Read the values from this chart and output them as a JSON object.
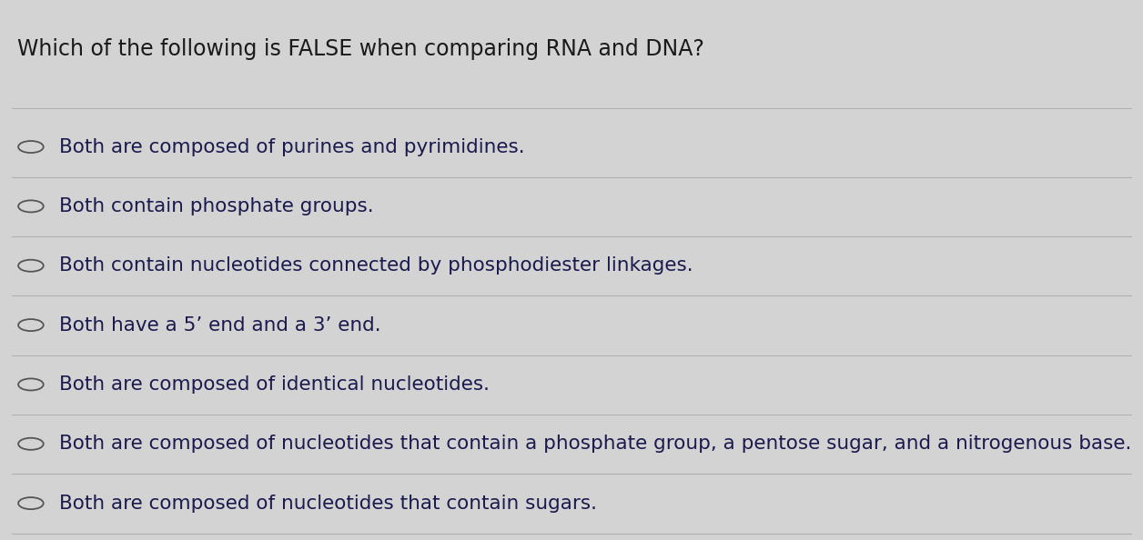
{
  "title": "Which of the following is FALSE when comparing RNA and DNA?",
  "options": [
    "Both are composed of purines and pyrimidines.",
    "Both contain phosphate groups.",
    "Both contain nucleotides connected by phosphodiester linkages.",
    "Both have a 5’ end and a 3’ end.",
    "Both are composed of identical nucleotides.",
    "Both are composed of nucleotides that contain a phosphate group, a pentose sugar, and a nitrogenous base.",
    "Both are composed of nucleotides that contain sugars."
  ],
  "bg_color": "#d3d3d3",
  "title_color": "#1a1a1a",
  "option_color": "#1a1a4e",
  "circle_color": "#555555",
  "line_color": "#b0b0b0",
  "title_fontsize": 17,
  "option_fontsize": 15.5,
  "fig_width": 12.56,
  "fig_height": 5.94
}
